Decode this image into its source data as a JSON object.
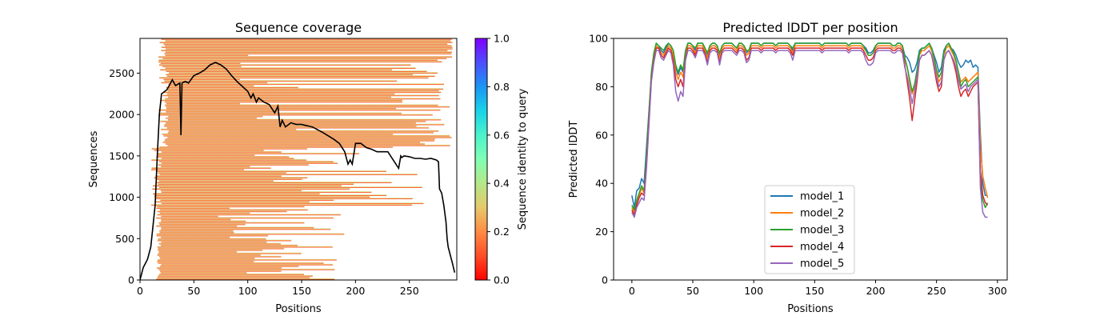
{
  "chart_data": [
    {
      "type": "heatmap",
      "title": "Sequence coverage",
      "xlabel": "Positions",
      "ylabel": "Sequences",
      "xlim": [
        0,
        294
      ],
      "ylim": [
        0,
        2920
      ],
      "xticks": [
        0,
        50,
        100,
        150,
        200,
        250
      ],
      "yticks": [
        0,
        500,
        1000,
        1500,
        2000,
        2500
      ],
      "colorbar": {
        "label": "Sequence identity to query",
        "range": [
          0.0,
          1.0
        ],
        "ticks": [
          "0.0",
          "0.2",
          "0.4",
          "0.6",
          "0.8",
          "1.0"
        ],
        "colormap": "rainbow_r"
      },
      "coverage_line": {
        "color": "#000000",
        "x": [
          0,
          3,
          7,
          10,
          14,
          16,
          18,
          20,
          25,
          30,
          33,
          37,
          38,
          39,
          42,
          45,
          50,
          55,
          60,
          65,
          70,
          75,
          80,
          85,
          90,
          95,
          100,
          103,
          105,
          108,
          110,
          115,
          120,
          125,
          128,
          130,
          132,
          135,
          140,
          145,
          150,
          160,
          170,
          180,
          185,
          190,
          193,
          195,
          197,
          200,
          205,
          210,
          215,
          220,
          230,
          240,
          242,
          243,
          245,
          250,
          255,
          260,
          265,
          270,
          275,
          277,
          278,
          280,
          282,
          284,
          285,
          286,
          288,
          290,
          292
        ],
        "y": [
          0,
          150,
          250,
          400,
          900,
          1500,
          2000,
          2250,
          2300,
          2420,
          2350,
          2380,
          1750,
          2380,
          2400,
          2380,
          2470,
          2500,
          2540,
          2600,
          2630,
          2600,
          2550,
          2470,
          2400,
          2340,
          2280,
          2200,
          2250,
          2150,
          2200,
          2150,
          2120,
          2020,
          2100,
          1850,
          1930,
          1850,
          1900,
          1880,
          1880,
          1850,
          1780,
          1700,
          1650,
          1550,
          1400,
          1450,
          1400,
          1650,
          1650,
          1600,
          1580,
          1550,
          1550,
          1350,
          1500,
          1480,
          1500,
          1490,
          1470,
          1470,
          1460,
          1470,
          1450,
          1430,
          1100,
          1050,
          900,
          700,
          500,
          400,
          300,
          200,
          90
        ]
      }
    },
    {
      "type": "line",
      "title": "Predicted lDDT per position",
      "xlabel": "Positions",
      "ylabel": "Predicted lDDT",
      "xlim": [
        -15,
        308
      ],
      "ylim": [
        0,
        100
      ],
      "xticks": [
        0,
        50,
        100,
        150,
        200,
        250,
        300
      ],
      "yticks": [
        0,
        20,
        40,
        60,
        80,
        100
      ],
      "legend_position": "lower center",
      "x": [
        0,
        2,
        4,
        6,
        8,
        10,
        12,
        14,
        16,
        18,
        20,
        22,
        24,
        26,
        28,
        30,
        32,
        34,
        36,
        38,
        40,
        42,
        44,
        46,
        48,
        50,
        52,
        54,
        56,
        58,
        60,
        62,
        64,
        66,
        68,
        70,
        72,
        74,
        76,
        78,
        80,
        82,
        84,
        86,
        88,
        90,
        92,
        94,
        96,
        98,
        100,
        102,
        104,
        106,
        108,
        110,
        112,
        114,
        116,
        118,
        120,
        122,
        124,
        126,
        128,
        130,
        132,
        134,
        136,
        138,
        140,
        142,
        144,
        146,
        148,
        150,
        152,
        154,
        156,
        158,
        160,
        162,
        164,
        166,
        168,
        170,
        172,
        174,
        176,
        178,
        180,
        182,
        184,
        186,
        188,
        190,
        192,
        194,
        196,
        198,
        200,
        202,
        204,
        206,
        208,
        210,
        212,
        214,
        216,
        218,
        220,
        222,
        224,
        226,
        228,
        230,
        232,
        234,
        236,
        238,
        240,
        242,
        244,
        246,
        248,
        250,
        252,
        254,
        256,
        258,
        260,
        262,
        264,
        266,
        268,
        270,
        272,
        274,
        276,
        278,
        280,
        282,
        284,
        286,
        288,
        290,
        292
      ],
      "series": [
        {
          "name": "model_1",
          "color": "#1f77b4",
          "values": [
            35,
            30,
            37,
            38,
            42,
            40,
            55,
            70,
            85,
            93,
            98,
            97,
            95,
            94,
            96,
            98,
            97,
            95,
            88,
            85,
            88,
            86,
            95,
            98,
            98,
            97,
            95,
            98,
            98,
            98,
            96,
            93,
            97,
            98,
            98,
            97,
            93,
            97,
            98,
            98,
            98,
            98,
            97,
            96,
            98,
            98,
            97,
            94,
            95,
            98,
            98,
            98,
            98,
            97,
            98,
            98,
            98,
            98,
            98,
            97,
            98,
            98,
            98,
            98,
            98,
            97,
            95,
            98,
            98,
            98,
            98,
            98,
            98,
            98,
            98,
            98,
            98,
            98,
            97,
            98,
            98,
            98,
            98,
            98,
            98,
            98,
            98,
            98,
            98,
            97,
            98,
            98,
            98,
            98,
            98,
            97,
            96,
            94,
            94,
            95,
            97,
            98,
            98,
            98,
            98,
            98,
            98,
            97,
            97,
            98,
            98,
            97,
            93,
            92,
            90,
            86,
            87,
            90,
            95,
            96,
            96,
            97,
            98,
            96,
            93,
            90,
            86,
            88,
            95,
            97,
            98,
            96,
            95,
            93,
            90,
            88,
            89,
            91,
            90,
            91,
            88,
            89,
            88,
            60,
            40,
            35,
            35
          ]
        },
        {
          "name": "model_2",
          "color": "#ff7f0e",
          "values": [
            30,
            28,
            32,
            35,
            38,
            36,
            50,
            68,
            84,
            92,
            97,
            96,
            94,
            93,
            95,
            97,
            96,
            93,
            86,
            83,
            86,
            84,
            94,
            97,
            97,
            96,
            94,
            97,
            97,
            97,
            95,
            92,
            96,
            97,
            97,
            96,
            92,
            96,
            97,
            97,
            97,
            97,
            96,
            95,
            97,
            97,
            96,
            93,
            94,
            97,
            97,
            97,
            97,
            96,
            97,
            97,
            97,
            97,
            97,
            96,
            97,
            97,
            97,
            97,
            97,
            96,
            94,
            97,
            97,
            97,
            97,
            97,
            97,
            97,
            97,
            97,
            97,
            97,
            96,
            97,
            97,
            97,
            97,
            97,
            97,
            97,
            97,
            97,
            97,
            96,
            97,
            97,
            97,
            97,
            97,
            96,
            95,
            93,
            93,
            94,
            96,
            97,
            97,
            97,
            97,
            97,
            97,
            96,
            96,
            97,
            97,
            96,
            91,
            88,
            82,
            77,
            80,
            86,
            93,
            95,
            95,
            96,
            97,
            95,
            91,
            86,
            82,
            84,
            93,
            96,
            97,
            95,
            93,
            90,
            86,
            82,
            83,
            84,
            82,
            83,
            84,
            85,
            86,
            55,
            43,
            38,
            34
          ]
        },
        {
          "name": "model_3",
          "color": "#2ca02c",
          "values": [
            31,
            29,
            33,
            36,
            39,
            37,
            52,
            69,
            86,
            94,
            98,
            97,
            96,
            95,
            97,
            98,
            97,
            95,
            89,
            86,
            89,
            87,
            95,
            98,
            98,
            97,
            96,
            98,
            98,
            98,
            96,
            94,
            97,
            98,
            98,
            97,
            94,
            97,
            98,
            98,
            98,
            98,
            97,
            96,
            98,
            98,
            97,
            95,
            95,
            98,
            98,
            98,
            98,
            97,
            98,
            98,
            98,
            98,
            98,
            97,
            98,
            98,
            98,
            98,
            98,
            97,
            96,
            98,
            98,
            98,
            98,
            98,
            98,
            98,
            98,
            98,
            98,
            98,
            97,
            98,
            98,
            98,
            98,
            98,
            98,
            98,
            98,
            98,
            98,
            97,
            98,
            98,
            98,
            98,
            98,
            97,
            95,
            93,
            93,
            94,
            97,
            98,
            98,
            98,
            98,
            98,
            98,
            97,
            97,
            98,
            98,
            97,
            92,
            88,
            83,
            78,
            81,
            87,
            94,
            96,
            96,
            97,
            98,
            96,
            92,
            87,
            84,
            86,
            94,
            97,
            98,
            96,
            94,
            91,
            86,
            80,
            82,
            83,
            80,
            81,
            82,
            83,
            84,
            40,
            33,
            30,
            32
          ]
        },
        {
          "name": "model_4",
          "color": "#d62728",
          "values": [
            29,
            27,
            31,
            34,
            36,
            35,
            48,
            66,
            83,
            91,
            96,
            96,
            93,
            92,
            94,
            96,
            95,
            91,
            83,
            80,
            83,
            80,
            92,
            96,
            96,
            95,
            93,
            96,
            96,
            96,
            94,
            90,
            95,
            96,
            96,
            95,
            90,
            95,
            96,
            96,
            96,
            96,
            95,
            94,
            96,
            96,
            95,
            91,
            92,
            96,
            96,
            96,
            96,
            95,
            96,
            96,
            96,
            96,
            96,
            95,
            96,
            96,
            96,
            96,
            96,
            95,
            93,
            96,
            96,
            96,
            96,
            96,
            96,
            96,
            96,
            96,
            96,
            96,
            95,
            96,
            96,
            96,
            96,
            96,
            96,
            96,
            96,
            96,
            96,
            95,
            96,
            96,
            96,
            96,
            96,
            95,
            93,
            91,
            91,
            92,
            95,
            96,
            96,
            96,
            96,
            96,
            96,
            95,
            95,
            96,
            96,
            95,
            89,
            82,
            75,
            66,
            74,
            82,
            91,
            93,
            93,
            94,
            95,
            93,
            88,
            82,
            78,
            80,
            91,
            94,
            95,
            93,
            90,
            86,
            80,
            76,
            78,
            79,
            76,
            78,
            80,
            81,
            82,
            45,
            35,
            32,
            31
          ]
        },
        {
          "name": "model_5",
          "color": "#9467bd",
          "values": [
            28,
            26,
            30,
            32,
            34,
            33,
            46,
            64,
            82,
            90,
            95,
            95,
            92,
            91,
            93,
            95,
            94,
            89,
            78,
            74,
            78,
            76,
            91,
            95,
            95,
            94,
            92,
            95,
            95,
            95,
            93,
            89,
            94,
            95,
            95,
            94,
            89,
            94,
            95,
            95,
            95,
            95,
            94,
            93,
            95,
            95,
            94,
            90,
            91,
            95,
            95,
            95,
            95,
            94,
            95,
            95,
            95,
            95,
            95,
            94,
            95,
            95,
            95,
            95,
            95,
            94,
            91,
            95,
            95,
            95,
            95,
            95,
            95,
            95,
            95,
            95,
            95,
            95,
            94,
            95,
            95,
            95,
            95,
            95,
            95,
            95,
            95,
            95,
            95,
            94,
            95,
            95,
            95,
            95,
            95,
            94,
            91,
            89,
            89,
            90,
            94,
            95,
            95,
            95,
            95,
            95,
            95,
            94,
            94,
            95,
            95,
            94,
            88,
            84,
            79,
            73,
            78,
            84,
            91,
            93,
            93,
            94,
            95,
            93,
            89,
            84,
            80,
            82,
            91,
            94,
            95,
            93,
            91,
            88,
            83,
            79,
            80,
            81,
            78,
            80,
            81,
            82,
            83,
            38,
            28,
            26,
            26
          ]
        }
      ]
    }
  ]
}
